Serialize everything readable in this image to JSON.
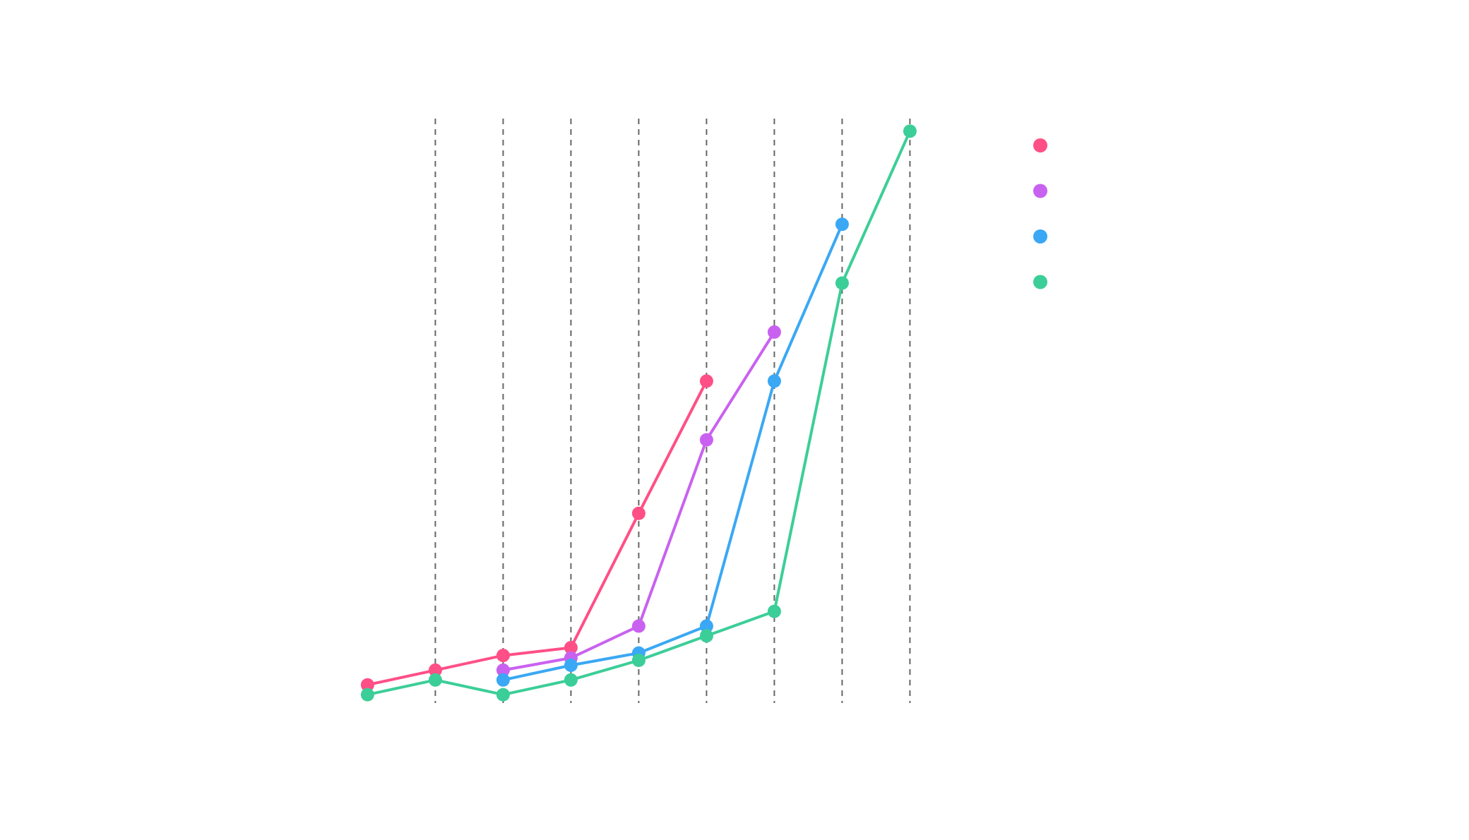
{
  "chart_data": {
    "type": "line",
    "title": "",
    "xlabel": "",
    "ylabel": "",
    "x": [
      1,
      2,
      3,
      4,
      5,
      6,
      7,
      8,
      9
    ],
    "xlim": [
      0.35,
      9.35
    ],
    "ylim": [
      -0.2,
      11.8
    ],
    "grid": {
      "x": "dashed-vertical",
      "y": false
    },
    "legend_position": "right",
    "series": [
      {
        "color": "#ff4f87",
        "x": [
          1,
          2,
          3,
          4,
          5,
          6
        ],
        "values": [
          0.2,
          0.5,
          0.8,
          0.96,
          3.7,
          6.4
        ]
      },
      {
        "color": "#c961f0",
        "x": [
          3,
          4,
          5,
          6,
          7
        ],
        "values": [
          0.5,
          0.75,
          1.4,
          5.2,
          7.4
        ]
      },
      {
        "color": "#3aa8f4",
        "x": [
          3,
          4,
          5,
          6,
          7,
          8
        ],
        "values": [
          0.3,
          0.6,
          0.85,
          1.4,
          6.4,
          9.6
        ]
      },
      {
        "color": "#3cce98",
        "x": [
          1,
          2,
          3,
          4,
          5,
          6,
          7,
          8,
          9
        ],
        "values": [
          0.0,
          0.3,
          0.0,
          0.3,
          0.7,
          1.2,
          1.7,
          8.4,
          11.5
        ]
      }
    ]
  }
}
